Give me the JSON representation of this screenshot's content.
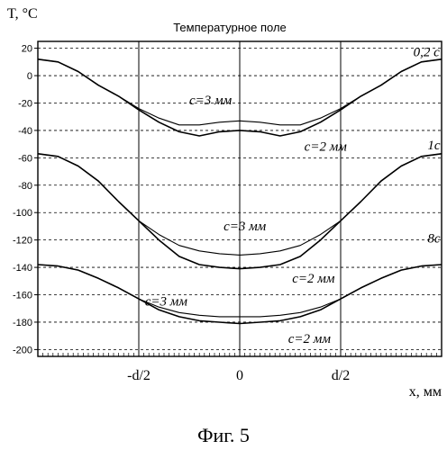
{
  "chart_data": {
    "type": "line",
    "title": "Температурное поле",
    "ylabel": "T, °C",
    "xlabel": "x, мм",
    "figure_caption": "Фиг. 5",
    "xlim": [
      -1,
      1
    ],
    "ylim": [
      -205,
      25
    ],
    "y_ticks": [
      20,
      0,
      -20,
      -40,
      -60,
      -80,
      -100,
      -120,
      -140,
      -160,
      -180,
      -200
    ],
    "x_ticks": [
      {
        "value": -0.5,
        "label": "-d/2"
      },
      {
        "value": 0,
        "label": "0"
      },
      {
        "value": 0.5,
        "label": "d/2"
      }
    ],
    "grid": true,
    "series": [
      {
        "x": [
          -1,
          -0.9,
          -0.8,
          -0.7,
          -0.6,
          -0.5,
          -0.4,
          -0.3,
          -0.2,
          -0.1,
          0,
          0.1,
          0.2,
          0.3,
          0.4,
          0.5,
          0.6,
          0.7,
          0.8,
          0.9,
          1
        ],
        "y": [
          12,
          10,
          3,
          -7,
          -15,
          -24,
          -31,
          -36,
          -36,
          -34,
          -33,
          -34,
          -36,
          -36,
          -31,
          -24,
          -15,
          -7,
          3,
          10,
          12
        ]
      },
      {
        "x": [
          -1,
          -0.9,
          -0.8,
          -0.7,
          -0.6,
          -0.5,
          -0.4,
          -0.3,
          -0.2,
          -0.1,
          0,
          0.1,
          0.2,
          0.3,
          0.4,
          0.5,
          0.6,
          0.7,
          0.8,
          0.9,
          1
        ],
        "y": [
          12,
          10,
          3,
          -7,
          -15,
          -25,
          -34,
          -41,
          -44,
          -41,
          -40,
          -41,
          -44,
          -41,
          -34,
          -25,
          -15,
          -7,
          3,
          10,
          12
        ]
      },
      {
        "x": [
          -1,
          -0.9,
          -0.8,
          -0.7,
          -0.6,
          -0.5,
          -0.4,
          -0.3,
          -0.2,
          -0.1,
          0,
          0.1,
          0.2,
          0.3,
          0.4,
          0.5,
          0.6,
          0.7,
          0.8,
          0.9,
          1
        ],
        "y": [
          -57,
          -59,
          -66,
          -77,
          -92,
          -106,
          -116,
          -124,
          -128,
          -130,
          -131,
          -130,
          -128,
          -124,
          -116,
          -106,
          -92,
          -77,
          -66,
          -59,
          -57
        ]
      },
      {
        "x": [
          -1,
          -0.9,
          -0.8,
          -0.7,
          -0.6,
          -0.5,
          -0.4,
          -0.3,
          -0.2,
          -0.1,
          0,
          0.1,
          0.2,
          0.3,
          0.4,
          0.5,
          0.6,
          0.7,
          0.8,
          0.9,
          1
        ],
        "y": [
          -57,
          -59,
          -66,
          -77,
          -92,
          -106,
          -120,
          -132,
          -138,
          -140,
          -141,
          -140,
          -138,
          -132,
          -120,
          -106,
          -92,
          -77,
          -66,
          -59,
          -57
        ]
      },
      {
        "x": [
          -1,
          -0.9,
          -0.8,
          -0.7,
          -0.6,
          -0.5,
          -0.4,
          -0.3,
          -0.2,
          -0.1,
          0,
          0.1,
          0.2,
          0.3,
          0.4,
          0.5,
          0.6,
          0.7,
          0.8,
          0.9,
          1
        ],
        "y": [
          -138,
          -139,
          -142,
          -148,
          -155,
          -163,
          -169,
          -173,
          -175,
          -176,
          -176,
          -176,
          -175,
          -173,
          -169,
          -163,
          -155,
          -148,
          -142,
          -139,
          -138
        ]
      },
      {
        "x": [
          -1,
          -0.9,
          -0.8,
          -0.7,
          -0.6,
          -0.5,
          -0.4,
          -0.3,
          -0.2,
          -0.1,
          0,
          0.1,
          0.2,
          0.3,
          0.4,
          0.5,
          0.6,
          0.7,
          0.8,
          0.9,
          1
        ],
        "y": [
          -138,
          -139,
          -142,
          -148,
          -155,
          -163,
          -171,
          -176,
          -179,
          -180,
          -181,
          -180,
          -179,
          -176,
          -171,
          -163,
          -155,
          -148,
          -142,
          -139,
          -138
        ]
      }
    ],
    "annotations": [
      {
        "text": "0,2 с",
        "x": 0.86,
        "y": 14
      },
      {
        "text": "с=3 мм",
        "x": -0.25,
        "y": -21
      },
      {
        "text": "с=2 мм",
        "x": 0.32,
        "y": -55
      },
      {
        "text": "1с",
        "x": 0.93,
        "y": -54
      },
      {
        "text": "с=3 мм",
        "x": -0.08,
        "y": -113
      },
      {
        "text": "с=2 мм",
        "x": 0.26,
        "y": -151
      },
      {
        "text": "8с",
        "x": 0.93,
        "y": -122
      },
      {
        "text": "с=3 мм",
        "x": -0.47,
        "y": -168
      },
      {
        "text": "с=2 мм",
        "x": 0.24,
        "y": -195
      }
    ]
  }
}
